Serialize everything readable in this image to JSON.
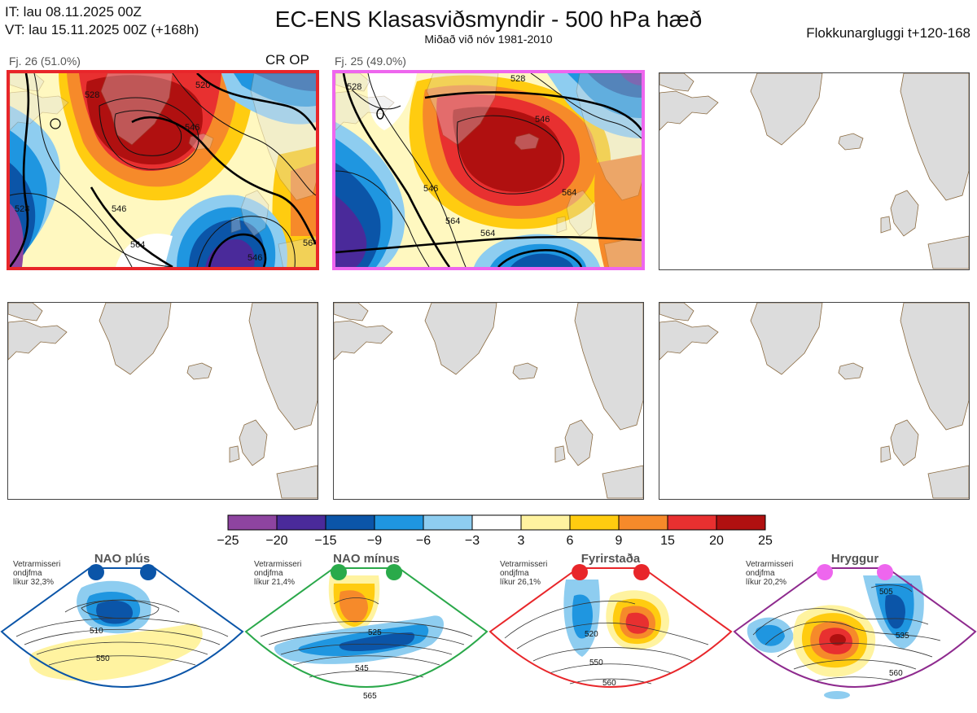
{
  "header": {
    "it_line": "IT: lau 08.11.2025 00Z",
    "vt_line": "VT: lau 15.11.2025 00Z  (+168h)",
    "title": "EC-ENS Klasasviðsmyndir - 500 hPa hæð",
    "subtitle": "Miðað við nóv 1981-2010",
    "window": "Flokkunargluggi t+120-168"
  },
  "panels": [
    {
      "label": "Fj. 26 (51.0%)",
      "tag": "CR OP",
      "border_color": "#e8262a",
      "contours": [
        "528",
        "520",
        "546",
        "546",
        "564",
        "528",
        "546",
        "564"
      ]
    },
    {
      "label": "Fj. 25 (49.0%)",
      "tag": "",
      "border_color": "#ee66ee",
      "contours": [
        "528",
        "546",
        "546",
        "564",
        "564",
        "564",
        "528"
      ]
    }
  ],
  "colorbar": {
    "ticks": [
      "−25",
      "−20",
      "−15",
      "−9",
      "−6",
      "−3",
      "3",
      "6",
      "9",
      "15",
      "20",
      "25"
    ],
    "colors": [
      "#8e44a0",
      "#4a2a9a",
      "#0b55a8",
      "#1f96e0",
      "#8ecdf0",
      "#ffffff",
      "#fff3a0",
      "#ffcc10",
      "#f68a2a",
      "#e83030",
      "#b01010"
    ]
  },
  "regimes": [
    {
      "name": "NAO plús",
      "note": [
        "Vetrarmisseri",
        "ondjfma",
        "líkur 32,3%"
      ],
      "color": "#0b55a8",
      "dot_color": "#0b55a8",
      "labels": [
        "510",
        "550"
      ]
    },
    {
      "name": "NAO mínus",
      "note": [
        "Vetrarmisseri",
        "ondjfma",
        "líkur 21,4%"
      ],
      "color": "#2aa84a",
      "dot_color": "#2aaa4a",
      "labels": [
        "525",
        "545",
        "565"
      ]
    },
    {
      "name": "Fyrirstaða",
      "note": [
        "Vetrarmisseri",
        "ondjfma",
        "líkur 26,1%"
      ],
      "color": "#e8262a",
      "dot_color": "#e8262a",
      "labels": [
        "520",
        "550",
        "560"
      ]
    },
    {
      "name": "Hryggur",
      "note": [
        "Vetrarmisseri",
        "ondjfma",
        "líkur 20,2%"
      ],
      "color": "#8e2a8e",
      "dot_color": "#ee66ee",
      "labels": [
        "505",
        "535",
        "560"
      ]
    }
  ]
}
